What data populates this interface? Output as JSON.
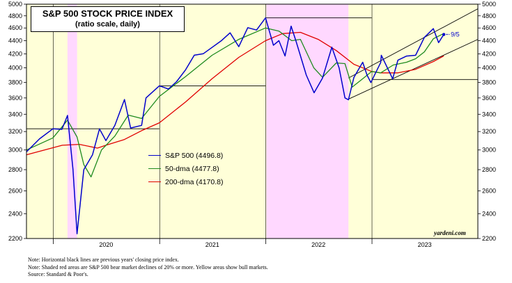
{
  "title": {
    "line1": "S&P 500 STOCK PRICE INDEX",
    "line2": "(ratio scale, daily)"
  },
  "legend": [
    {
      "label": "S&P 500 (4496.8)",
      "color": "#0000cc"
    },
    {
      "label": "50-dma (4477.8)",
      "color": "#1e8a1e"
    },
    {
      "label": "200-dma (4170.8)",
      "color": "#e00000"
    }
  ],
  "last_label": "9/5",
  "brand": "yardeni.com",
  "notes": [
    "Note: Horizontal black lines are previous years' closing price index.",
    "Note: Shaded red areas are S&P 500 bear market declines of 20% or more. Yellow areas show bull markets.",
    "Source: Standard & Poor's."
  ],
  "chart_data": {
    "type": "line",
    "scale": "log",
    "ylim": [
      2200,
      5000
    ],
    "yticks": [
      2200,
      2400,
      2600,
      2800,
      3000,
      3200,
      3400,
      3600,
      3800,
      4000,
      4200,
      4400,
      4600,
      4800,
      5000
    ],
    "ytick_labels": [
      "2200",
      "2400",
      "2600",
      "2800",
      "3000",
      "3200",
      "3400",
      "3600",
      "3800",
      "4000",
      "4200",
      "4400",
      "4600",
      "4800",
      "5000"
    ],
    "xlim": [
      "2019-10-01",
      "2023-12-31"
    ],
    "year_labels": [
      {
        "label": "2020",
        "at": "2020-07-01"
      },
      {
        "label": "2021",
        "at": "2021-07-01"
      },
      {
        "label": "2022",
        "at": "2022-07-01"
      },
      {
        "label": "2023",
        "at": "2023-07-01"
      }
    ],
    "year_boundaries": [
      "2020-01-01",
      "2021-01-01",
      "2022-01-01",
      "2023-01-01"
    ],
    "bull_color": "#ffffd8",
    "bear_color": "#ffd8ff",
    "bear_periods": [
      [
        "2020-02-19",
        "2020-03-23"
      ],
      [
        "2022-01-03",
        "2022-10-12"
      ]
    ],
    "previous_year_closes": [
      {
        "year": 2019,
        "value": 3231,
        "from": "2019-10-01",
        "to": "2020-12-31"
      },
      {
        "year": 2020,
        "value": 3756,
        "from": "2021-01-01",
        "to": "2021-12-31"
      },
      {
        "year": 2021,
        "value": 4766,
        "from": "2022-01-01",
        "to": "2022-12-31"
      },
      {
        "year": 2022,
        "value": 3840,
        "from": "2023-01-01",
        "to": "2023-12-31"
      }
    ],
    "channel_lines": [
      {
        "x": [
          "2022-10-12",
          "2023-12-31"
        ],
        "y": [
          3860,
          4920
        ]
      },
      {
        "x": [
          "2022-10-12",
          "2023-12-31"
        ],
        "y": [
          3585,
          4420
        ]
      }
    ],
    "series": [
      {
        "name": "S&P 500",
        "color": "#0000cc",
        "x": [
          "2019-10-01",
          "2019-11-15",
          "2019-12-31",
          "2020-01-31",
          "2020-02-19",
          "2020-03-09",
          "2020-03-23",
          "2020-04-15",
          "2020-05-15",
          "2020-06-08",
          "2020-06-30",
          "2020-07-31",
          "2020-09-02",
          "2020-09-23",
          "2020-10-31",
          "2020-11-15",
          "2020-12-31",
          "2021-01-31",
          "2021-02-28",
          "2021-03-31",
          "2021-04-30",
          "2021-05-31",
          "2021-06-30",
          "2021-07-31",
          "2021-08-31",
          "2021-09-30",
          "2021-10-31",
          "2021-11-30",
          "2021-12-31",
          "2022-01-27",
          "2022-02-15",
          "2022-03-08",
          "2022-03-29",
          "2022-04-15",
          "2022-05-20",
          "2022-06-16",
          "2022-07-15",
          "2022-08-16",
          "2022-09-10",
          "2022-09-30",
          "2022-10-12",
          "2022-10-31",
          "2022-11-30",
          "2022-12-15",
          "2022-12-28",
          "2023-01-31",
          "2023-02-02",
          "2023-03-13",
          "2023-03-31",
          "2023-04-30",
          "2023-05-31",
          "2023-06-30",
          "2023-07-31",
          "2023-08-18",
          "2023-09-05"
        ],
        "y": [
          2980,
          3120,
          3231,
          3225,
          3386,
          2800,
          2237,
          2800,
          2950,
          3230,
          3100,
          3270,
          3580,
          3240,
          3270,
          3600,
          3756,
          3714,
          3811,
          3973,
          4181,
          4204,
          4297,
          4395,
          4523,
          4308,
          4605,
          4567,
          4766,
          4330,
          4400,
          4170,
          4630,
          4390,
          3900,
          3666,
          3860,
          4300,
          4000,
          3600,
          3577,
          3870,
          4080,
          3900,
          3800,
          4076,
          4180,
          3850,
          4109,
          4169,
          4180,
          4450,
          4589,
          4370,
          4497
        ]
      },
      {
        "name": "50-dma",
        "color": "#1e8a1e",
        "x": [
          "2019-10-01",
          "2019-12-31",
          "2020-02-19",
          "2020-03-23",
          "2020-04-15",
          "2020-05-10",
          "2020-06-15",
          "2020-07-31",
          "2020-09-15",
          "2020-10-31",
          "2020-12-31",
          "2021-03-31",
          "2021-06-30",
          "2021-09-30",
          "2021-12-31",
          "2022-02-15",
          "2022-03-31",
          "2022-04-30",
          "2022-06-15",
          "2022-07-15",
          "2022-08-31",
          "2022-09-30",
          "2022-10-25",
          "2022-11-30",
          "2022-12-31",
          "2023-01-31",
          "2023-03-15",
          "2023-04-30",
          "2023-05-31",
          "2023-06-30",
          "2023-07-31",
          "2023-08-31",
          "2023-09-05"
        ],
        "y": [
          3000,
          3130,
          3330,
          3140,
          2850,
          2730,
          3000,
          3150,
          3390,
          3350,
          3620,
          3880,
          4180,
          4420,
          4600,
          4550,
          4400,
          4420,
          4000,
          3870,
          4070,
          4060,
          3740,
          3850,
          3950,
          3930,
          4040,
          4080,
          4130,
          4230,
          4430,
          4500,
          4478
        ]
      },
      {
        "name": "200-dma",
        "color": "#e00000",
        "x": [
          "2019-10-01",
          "2020-02-01",
          "2020-03-31",
          "2020-06-01",
          "2020-06-30",
          "2020-08-31",
          "2020-10-31",
          "2020-12-31",
          "2021-03-31",
          "2021-06-30",
          "2021-09-30",
          "2021-12-31",
          "2022-02-28",
          "2022-04-30",
          "2022-06-30",
          "2022-08-31",
          "2022-10-31",
          "2022-12-31",
          "2023-01-31",
          "2023-03-31",
          "2023-05-31",
          "2023-07-31",
          "2023-09-05"
        ],
        "y": [
          2950,
          3050,
          3060,
          3020,
          3050,
          3110,
          3210,
          3300,
          3550,
          3850,
          4150,
          4400,
          4510,
          4530,
          4420,
          4250,
          4050,
          3950,
          3930,
          3930,
          3980,
          4090,
          4171
        ]
      }
    ]
  }
}
